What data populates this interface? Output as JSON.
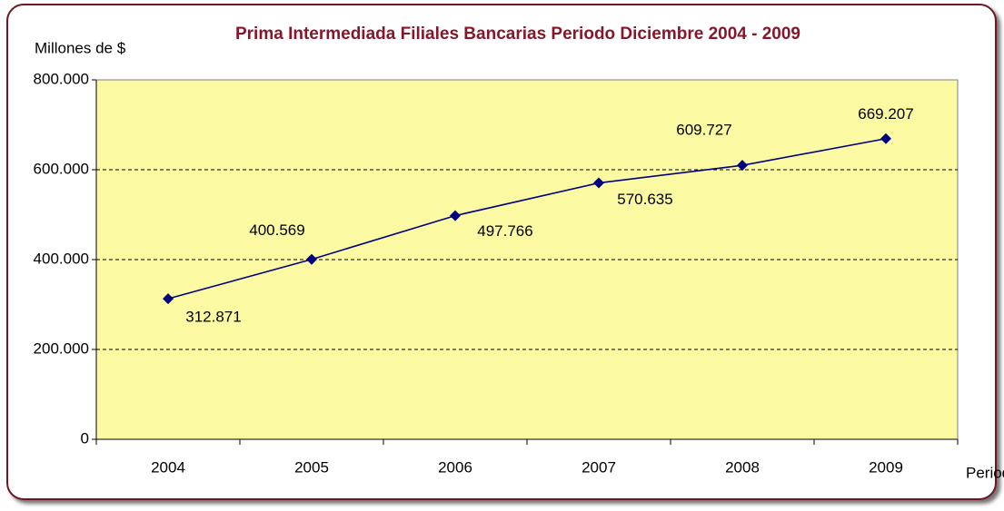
{
  "chart_data": {
    "type": "line",
    "title": "Prima Intermediada Filiales Bancarias Periodo Diciembre 2004 - 2009",
    "y_axis_label": "Millones de $",
    "x_axis_label": "Periodo",
    "categories": [
      "2004",
      "2005",
      "2006",
      "2007",
      "2008",
      "2009"
    ],
    "values": [
      312871,
      400569,
      497766,
      570635,
      609727,
      669207
    ],
    "value_labels": [
      "312.871",
      "400.569",
      "497.766",
      "570.635",
      "609.727",
      "669.207"
    ],
    "color": "#000080",
    "ylim": [
      0,
      800000
    ],
    "yticks": [
      0,
      {
        "value": 200000,
        "label": "200.000"
      },
      {
        "value": 400000,
        "label": "400.000"
      },
      {
        "value": 600000,
        "label": "600.000"
      },
      {
        "value": 800000,
        "label": "800.000"
      }
    ],
    "grid": true
  }
}
